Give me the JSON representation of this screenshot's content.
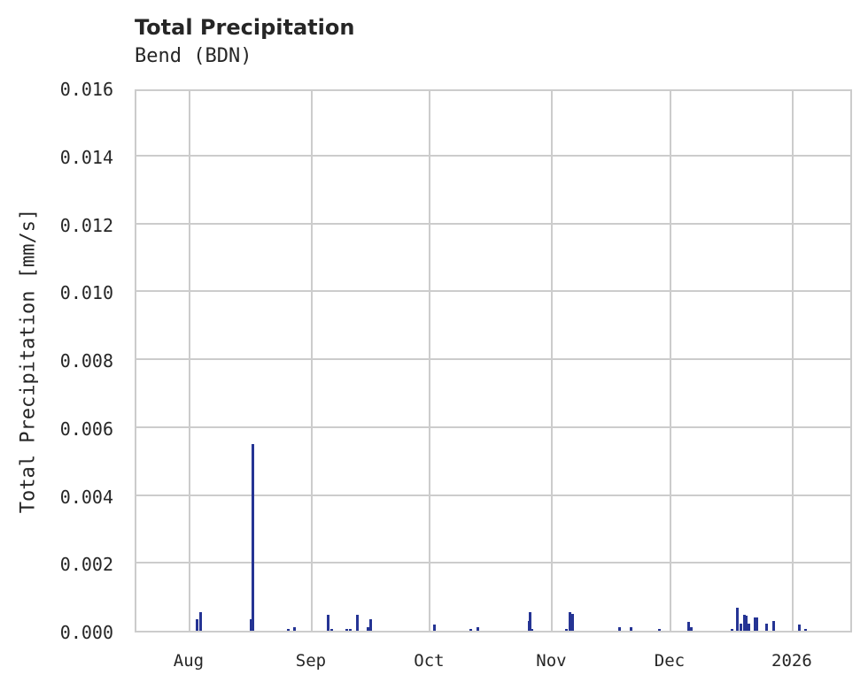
{
  "chart_data": {
    "type": "bar",
    "title": "Total Precipitation",
    "subtitle": "Bend (BDN)",
    "xlabel": "",
    "ylabel": "Total Precipitation [mm/s]",
    "ylim": [
      0,
      0.016
    ],
    "yticks": [
      "0.000",
      "0.002",
      "0.004",
      "0.006",
      "0.008",
      "0.010",
      "0.012",
      "0.014",
      "0.016"
    ],
    "xticks": [
      {
        "label": "Aug",
        "day": 0
      },
      {
        "label": "Sep",
        "day": 31
      },
      {
        "label": "Oct",
        "day": 61
      },
      {
        "label": "Nov",
        "day": 92
      },
      {
        "label": "Dec",
        "day": 122
      },
      {
        "label": "2026",
        "day": 153
      }
    ],
    "x_origin": "Aug 1",
    "xrange_days": [
      -13.7,
      168.3
    ],
    "grid": true,
    "bar_color": "#253494",
    "series": [
      {
        "name": "Total Precipitation",
        "points": [
          {
            "day": 2.0,
            "value": 0.00035
          },
          {
            "day": 2.9,
            "value": 0.00055
          },
          {
            "day": 15.7,
            "value": 0.00035
          },
          {
            "day": 16.2,
            "value": 0.0055
          },
          {
            "day": 25.2,
            "value": 5e-05
          },
          {
            "day": 26.7,
            "value": 0.0001
          },
          {
            "day": 35.3,
            "value": 0.00048
          },
          {
            "day": 36.2,
            "value": 5e-05
          },
          {
            "day": 40.0,
            "value": 5e-05
          },
          {
            "day": 40.9,
            "value": 5e-05
          },
          {
            "day": 42.7,
            "value": 0.00048
          },
          {
            "day": 45.4,
            "value": 0.0001
          },
          {
            "day": 46.1,
            "value": 0.00035
          },
          {
            "day": 62.2,
            "value": 0.00018
          },
          {
            "day": 71.5,
            "value": 5e-05
          },
          {
            "day": 73.3,
            "value": 0.0001
          },
          {
            "day": 86.3,
            "value": 0.0003
          },
          {
            "day": 86.5,
            "value": 0.00055
          },
          {
            "day": 87.0,
            "value": 5e-05
          },
          {
            "day": 95.7,
            "value": 5e-05
          },
          {
            "day": 96.6,
            "value": 0.00055
          },
          {
            "day": 97.3,
            "value": 0.0005
          },
          {
            "day": 109.2,
            "value": 0.0001
          },
          {
            "day": 112.1,
            "value": 0.0001
          },
          {
            "day": 119.3,
            "value": 5e-05
          },
          {
            "day": 126.7,
            "value": 0.00025
          },
          {
            "day": 127.4,
            "value": 0.0001
          },
          {
            "day": 137.8,
            "value": 5e-05
          },
          {
            "day": 139.1,
            "value": 0.00068
          },
          {
            "day": 140.0,
            "value": 0.0002
          },
          {
            "day": 140.9,
            "value": 0.00048
          },
          {
            "day": 141.3,
            "value": 0.00045
          },
          {
            "day": 142.0,
            "value": 0.0002
          },
          {
            "day": 143.6,
            "value": 0.0004
          },
          {
            "day": 144.0,
            "value": 0.00038
          },
          {
            "day": 146.5,
            "value": 0.0002
          },
          {
            "day": 148.3,
            "value": 0.00028
          },
          {
            "day": 154.8,
            "value": 0.00018
          },
          {
            "day": 156.4,
            "value": 5e-05
          }
        ]
      }
    ]
  }
}
